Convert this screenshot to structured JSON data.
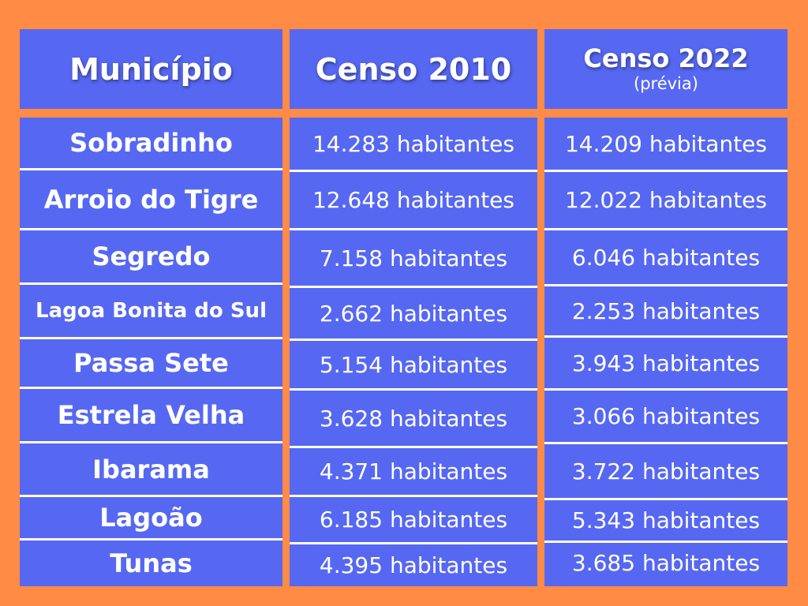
{
  "headers": {
    "municipio": "Município",
    "censo2010": "Censo 2010",
    "censo2022": "Censo 2022",
    "censo2022_note": "(prévia)"
  },
  "rows": [
    {
      "municipio": "Sobradinho",
      "censo2010": "14.283 habitantes",
      "censo2022": "14.209 habitantes"
    },
    {
      "municipio": "Arroio do Tigre",
      "censo2010": "12.648 habitantes",
      "censo2022": "12.022 habitantes"
    },
    {
      "municipio": "Segredo",
      "censo2010": "7.158 habitantes",
      "censo2022": "6.046 habitantes"
    },
    {
      "municipio": "Lagoa Bonita do Sul",
      "censo2010": "2.662 habitantes",
      "censo2022": "2.253 habitantes"
    },
    {
      "municipio": "Passa Sete",
      "censo2010": "5.154 habitantes",
      "censo2022": "3.943 habitantes"
    },
    {
      "municipio": "Estrela Velha",
      "censo2010": "3.628 habitantes",
      "censo2022": "3.066 habitantes"
    },
    {
      "municipio": "Ibarama",
      "censo2010": "4.371 habitantes",
      "censo2022": "3.722 habitantes"
    },
    {
      "municipio": "Lagoão",
      "censo2010": "6.185 habitantes",
      "censo2022": "5.343 habitantes"
    },
    {
      "municipio": "Tunas",
      "censo2010": "4.395 habitantes",
      "censo2022": "3.685 habitantes"
    }
  ],
  "colors": {
    "background": "#FF8B45",
    "cell": "#5668F2",
    "text": "#FFFFFF"
  }
}
